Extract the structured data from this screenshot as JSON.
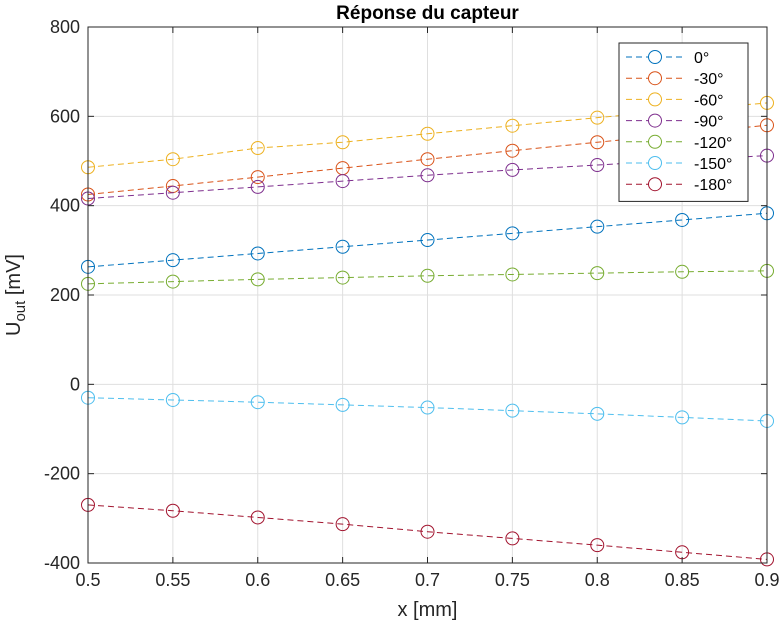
{
  "chart_data": {
    "type": "line",
    "title": "Réponse du capteur",
    "xlabel": "x [mm]",
    "ylabel_main": "U",
    "ylabel_sub": "out",
    "ylabel_unit": " [mV]",
    "xlim": [
      0.5,
      0.9
    ],
    "ylim": [
      -400,
      800
    ],
    "xticks": [
      0.5,
      0.55,
      0.6,
      0.65,
      0.7,
      0.75,
      0.8,
      0.85,
      0.9
    ],
    "xtick_labels": [
      "0.5",
      "0.55",
      "0.6",
      "0.65",
      "0.7",
      "0.75",
      "0.8",
      "0.85",
      "0.9"
    ],
    "yticks": [
      800,
      600,
      400,
      200,
      0,
      -200,
      -400
    ],
    "ytick_labels": [
      "800",
      "600",
      "400",
      "200",
      "0",
      "-200",
      "-400"
    ],
    "grid": true,
    "legend_position": "top-right",
    "line_style": "dashed",
    "marker": "open-circle",
    "x": [
      0.5,
      0.55,
      0.6,
      0.65,
      0.7,
      0.75,
      0.8,
      0.85,
      0.9
    ],
    "series": [
      {
        "name": "0°",
        "color": "#0072BD",
        "values": [
          263,
          278,
          293,
          308,
          323,
          338,
          353,
          368,
          383
        ]
      },
      {
        "name": "-30°",
        "color": "#D95319",
        "values": [
          425,
          444,
          464,
          484,
          504,
          523,
          542,
          561,
          580
        ]
      },
      {
        "name": "-60°",
        "color": "#EDB120",
        "values": [
          486,
          504,
          529,
          542,
          561,
          579,
          597,
          614,
          630
        ]
      },
      {
        "name": "-90°",
        "color": "#7E2F8E",
        "values": [
          416,
          429,
          442,
          455,
          468,
          480,
          491,
          502,
          512
        ]
      },
      {
        "name": "-120°",
        "color": "#77AC30",
        "values": [
          225,
          230,
          235,
          239,
          243,
          246,
          249,
          252,
          254
        ]
      },
      {
        "name": "-150°",
        "color": "#4DBEEE",
        "values": [
          -30,
          -35,
          -40,
          -46,
          -52,
          -59,
          -66,
          -74,
          -82
        ]
      },
      {
        "name": "-180°",
        "color": "#A2142F",
        "values": [
          -270,
          -283,
          -298,
          -313,
          -330,
          -345,
          -360,
          -376,
          -392
        ]
      }
    ]
  }
}
